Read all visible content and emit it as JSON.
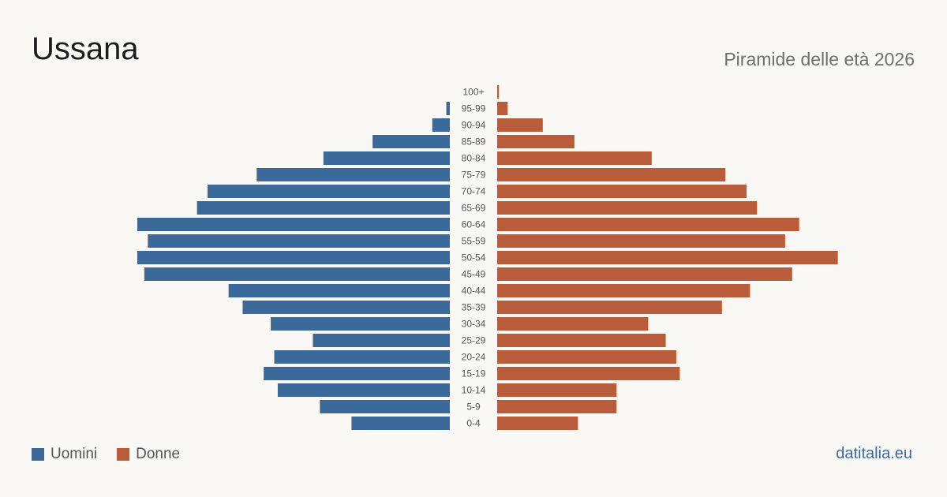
{
  "header": {
    "title": "Ussana",
    "subtitle": "Piramide delle età 2026"
  },
  "legend": {
    "men_label": "Uomini",
    "women_label": "Donne"
  },
  "footer": {
    "brand": "datitalia.eu"
  },
  "colors": {
    "men": "#3b6a9a",
    "women": "#b95c3c",
    "tick_text": "#555555"
  },
  "chart_data": {
    "type": "bar",
    "orientation": "horizontal-pyramid",
    "categories": [
      "100+",
      "95-99",
      "90-94",
      "85-89",
      "80-84",
      "75-79",
      "70-74",
      "65-69",
      "60-64",
      "55-59",
      "50-54",
      "45-49",
      "40-44",
      "35-39",
      "30-34",
      "25-29",
      "20-24",
      "15-19",
      "10-14",
      "5-9",
      "0-4"
    ],
    "series": [
      {
        "name": "Uomini",
        "side": "left",
        "values": [
          0,
          1,
          5,
          22,
          36,
          55,
          69,
          72,
          89,
          86,
          89,
          87,
          63,
          59,
          51,
          39,
          50,
          53,
          49,
          37,
          28
        ]
      },
      {
        "name": "Donne",
        "side": "right",
        "values": [
          0.5,
          3,
          13,
          22,
          44,
          65,
          71,
          74,
          86,
          82,
          97,
          84,
          72,
          64,
          43,
          48,
          51,
          52,
          34,
          34,
          23
        ]
      }
    ],
    "grid": false,
    "legend_position": "bottom-left"
  }
}
